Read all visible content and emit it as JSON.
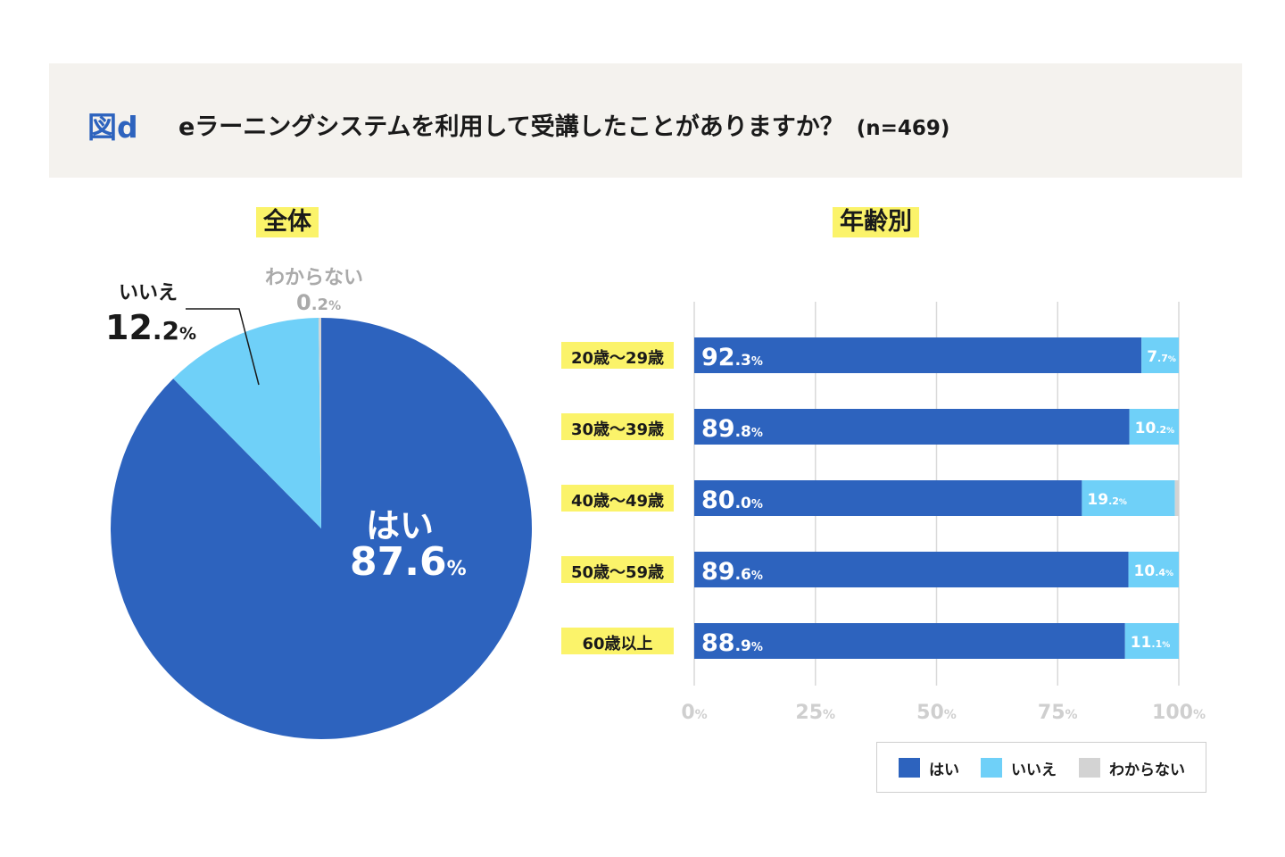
{
  "figure_tag": "図d",
  "question": "eラーニングシステムを利用して受講したことがありますか？",
  "sample_size": "(n=469)",
  "colors": {
    "yes": "#2d63be",
    "no": "#6fd0f8",
    "unknown": "#d3d3d3",
    "highlight": "#fbf36a",
    "axis_text": "#cfcfcf"
  },
  "chart_data": [
    {
      "type": "pie",
      "title": "全体",
      "slices": [
        {
          "label": "はい",
          "value": 87.6,
          "int": "87",
          "dec": ".6",
          "unit": "%"
        },
        {
          "label": "いいえ",
          "value": 12.2,
          "int": "12",
          "dec": ".2",
          "unit": "%"
        },
        {
          "label": "わからない",
          "value": 0.2,
          "int": "0",
          "dec": ".2",
          "unit": "%"
        }
      ]
    },
    {
      "type": "bar",
      "orientation": "horizontal",
      "stacked": true,
      "title": "年齢別",
      "categories": [
        "20歳〜29歳",
        "30歳〜39歳",
        "40歳〜49歳",
        "50歳〜59歳",
        "60歳以上"
      ],
      "series": [
        {
          "name": "はい",
          "values": [
            92.3,
            89.8,
            80.0,
            89.6,
            88.9
          ]
        },
        {
          "name": "いいえ",
          "values": [
            7.7,
            10.2,
            19.2,
            10.4,
            11.1
          ]
        },
        {
          "name": "わからない",
          "values": [
            0.0,
            0.0,
            0.8,
            0.0,
            0.0
          ]
        }
      ],
      "xlim": [
        0,
        100
      ],
      "xticks": [
        {
          "value": 0,
          "label": "0"
        },
        {
          "value": 25,
          "label": "25"
        },
        {
          "value": 50,
          "label": "50"
        },
        {
          "value": 75,
          "label": "75"
        },
        {
          "value": 100,
          "label": "100"
        }
      ],
      "xtick_unit": "%",
      "grid": true,
      "legend_position": "bottom-right"
    }
  ]
}
